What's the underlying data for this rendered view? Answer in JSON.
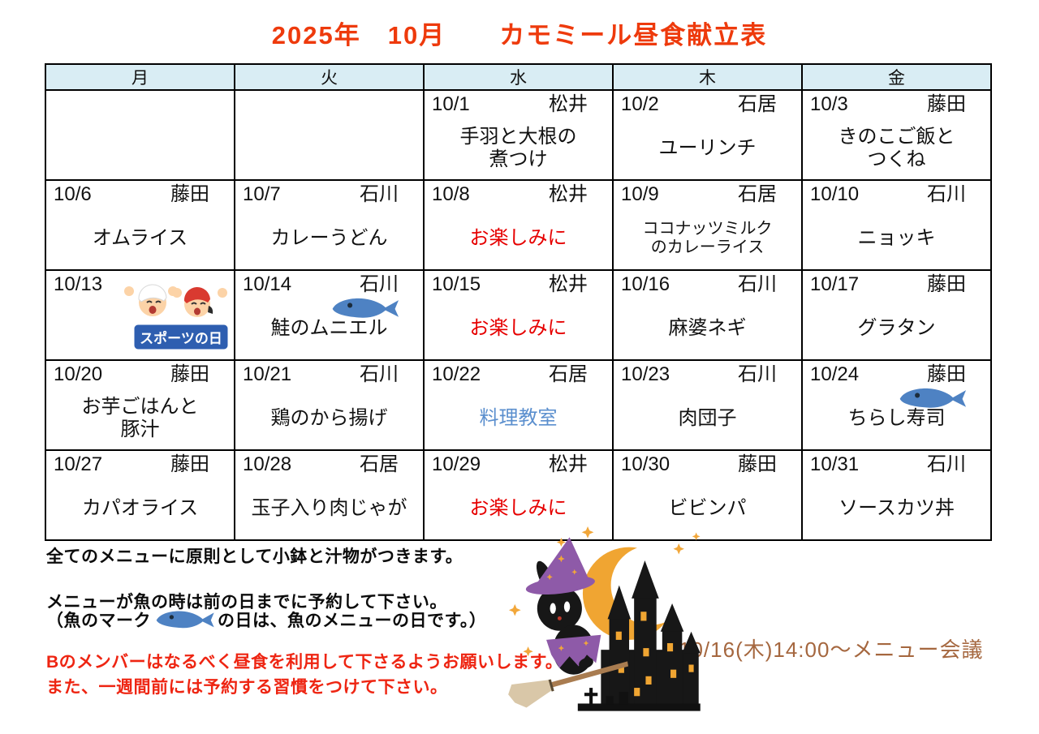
{
  "title": "2025年　10月　　カモミール昼食献立表",
  "colors": {
    "title_red": "#ee3a0c",
    "header_bg": "#d9edf4",
    "gray_cell": "#e0e0e0",
    "menu_red": "#e60000",
    "menu_blue": "#5b8fce",
    "warning_red": "#ee2512",
    "meeting_brown": "#a5673f",
    "fish_blue": "#4e82c3",
    "banner_blue": "#2e5eb0"
  },
  "calendar": {
    "day_headers": [
      "月",
      "火",
      "水",
      "木",
      "金"
    ],
    "sports_day_label": "スポーツの日",
    "weeks": [
      [
        {
          "type": "empty"
        },
        {
          "type": "empty"
        },
        {
          "date": "10/1",
          "teacher": "松井",
          "menu": "手羽と大根の\n煮つけ"
        },
        {
          "date": "10/2",
          "teacher": "石居",
          "menu": "ユーリンチ"
        },
        {
          "date": "10/3",
          "teacher": "藤田",
          "menu": "きのこご飯と\nつくね"
        }
      ],
      [
        {
          "date": "10/6",
          "teacher": "藤田",
          "menu": "オムライス"
        },
        {
          "date": "10/7",
          "teacher": "石川",
          "menu": "カレーうどん"
        },
        {
          "date": "10/8",
          "teacher": "松井",
          "menu": "お楽しみに",
          "menu_style": "red"
        },
        {
          "date": "10/9",
          "teacher": "石居",
          "menu": "ココナッツミルク\nのカレーライス",
          "small": true
        },
        {
          "date": "10/10",
          "teacher": "石川",
          "menu": "ニョッキ"
        }
      ],
      [
        {
          "type": "holiday",
          "date": "10/13"
        },
        {
          "date": "10/14",
          "teacher": "石川",
          "menu": "鮭のムニエル",
          "fish": true
        },
        {
          "date": "10/15",
          "teacher": "松井",
          "menu": "お楽しみに",
          "menu_style": "red"
        },
        {
          "date": "10/16",
          "teacher": "石川",
          "menu": "麻婆ネギ"
        },
        {
          "date": "10/17",
          "teacher": "藤田",
          "menu": "グラタン"
        }
      ],
      [
        {
          "date": "10/20",
          "teacher": "藤田",
          "menu": "お芋ごはんと\n豚汁"
        },
        {
          "date": "10/21",
          "teacher": "石川",
          "menu": "鶏のから揚げ"
        },
        {
          "date": "10/22",
          "teacher": "石居",
          "menu": "料理教室",
          "menu_style": "blue"
        },
        {
          "date": "10/23",
          "teacher": "石川",
          "menu": "肉団子"
        },
        {
          "date": "10/24",
          "teacher": "藤田",
          "menu": "ちらし寿司",
          "fish": true
        }
      ],
      [
        {
          "date": "10/27",
          "teacher": "藤田",
          "menu": "カパオライス"
        },
        {
          "date": "10/28",
          "teacher": "石居",
          "menu": "玉子入り肉じゃが"
        },
        {
          "date": "10/29",
          "teacher": "松井",
          "menu": "お楽しみに",
          "menu_style": "red"
        },
        {
          "date": "10/30",
          "teacher": "藤田",
          "menu": "ビビンパ"
        },
        {
          "date": "10/31",
          "teacher": "石川",
          "menu": "ソースカツ丼"
        }
      ]
    ]
  },
  "notes": {
    "note1": "全てのメニューに原則として小鉢と汁物がつきます。",
    "note2": "メニューが魚の時は前の日までに予約して下さい。",
    "note3_prefix": "（魚のマーク",
    "note3_suffix": "の日は、魚のメニューの日です。）",
    "warning1": "Bのメンバーはなるべく昼食を利用して下さるようお願いします。",
    "warning2": "また、一週間前には予約する習慣をつけて下さい。"
  },
  "meeting_note": "10/16(木)14:00～メニュー会議"
}
